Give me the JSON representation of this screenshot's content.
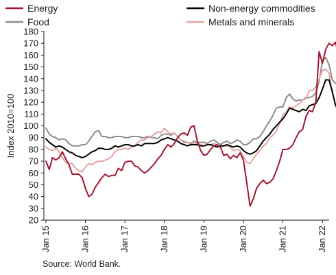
{
  "chart_data": {
    "type": "line",
    "ylabel": "Index 2010=100",
    "ylim": [
      20,
      180
    ],
    "yticks": [
      20,
      30,
      40,
      50,
      60,
      70,
      80,
      90,
      100,
      110,
      120,
      130,
      140,
      150,
      160,
      170,
      180
    ],
    "xticks": [
      "Jan 15",
      "Jan 16",
      "Jan 17",
      "Jan 18",
      "Jan 19",
      "Jan 20",
      "Jan 21",
      "Jan 22"
    ],
    "x_start": "2015-01",
    "legend_position": "top",
    "grid": false,
    "series": [
      {
        "name": "Energy",
        "color": "#a3142f",
        "values": [
          70,
          63,
          73,
          71,
          73,
          78,
          72,
          67,
          59,
          59,
          59,
          56,
          47,
          40,
          42,
          48,
          52,
          56,
          59,
          57,
          58,
          58,
          64,
          62,
          69,
          70,
          70,
          66,
          65,
          62,
          60,
          62,
          65,
          68,
          72,
          75,
          80,
          84,
          82,
          85,
          90,
          93,
          94,
          92,
          99,
          100,
          87,
          79,
          75,
          76,
          80,
          83,
          84,
          82,
          75,
          76,
          72,
          75,
          73,
          77,
          71,
          52,
          32,
          38,
          47,
          51,
          54,
          51,
          52,
          55,
          62,
          70,
          80,
          80,
          81,
          84,
          90,
          95,
          97,
          108,
          113,
          112,
          120,
          163,
          153,
          165,
          170,
          168,
          171,
          157
        ]
      },
      {
        "name": "Non-energy commodities",
        "color": "#000000",
        "values": [
          89,
          86,
          84,
          82,
          83,
          82,
          80,
          78,
          77,
          75,
          74,
          73,
          74,
          76,
          78,
          79,
          81,
          81,
          80,
          80,
          81,
          83,
          82,
          83,
          84,
          84,
          83,
          83,
          84,
          83,
          85,
          85,
          85,
          85,
          86,
          88,
          89,
          90,
          89,
          88,
          87,
          85,
          84,
          83,
          84,
          84,
          84,
          83,
          83,
          84,
          84,
          83,
          82,
          83,
          83,
          84,
          83,
          82,
          83,
          82,
          79,
          77,
          76,
          77,
          79,
          83,
          87,
          90,
          93,
          97,
          100,
          103,
          106,
          110,
          115,
          114,
          113,
          112,
          114,
          113,
          117,
          118,
          119,
          124,
          131,
          139,
          139,
          129,
          117,
          116,
          115,
          114
        ]
      },
      {
        "name": "Food",
        "color": "#8c8c8c",
        "values": [
          98,
          93,
          91,
          90,
          88,
          89,
          88,
          85,
          83,
          83,
          83,
          84,
          84,
          87,
          91,
          95,
          96,
          91,
          91,
          90,
          90,
          91,
          91,
          91,
          90,
          90,
          91,
          91,
          91,
          90,
          90,
          91,
          90,
          90,
          89,
          92,
          93,
          93,
          92,
          94,
          91,
          88,
          86,
          86,
          85,
          87,
          86,
          86,
          86,
          85,
          87,
          88,
          86,
          84,
          86,
          87,
          85,
          86,
          88,
          87,
          84,
          84,
          86,
          89,
          89,
          91,
          95,
          100,
          104,
          109,
          115,
          116,
          116,
          124,
          127,
          123,
          121,
          122,
          122,
          124,
          124,
          125,
          128,
          138,
          155,
          158,
          152,
          139,
          136,
          137
        ]
      },
      {
        "name": "Metals and minerals",
        "color": "#e6a3a3",
        "values": [
          82,
          80,
          79,
          81,
          78,
          73,
          69,
          68,
          68,
          64,
          62,
          61,
          65,
          68,
          67,
          69,
          70,
          70,
          71,
          72,
          74,
          78,
          80,
          80,
          81,
          80,
          82,
          83,
          86,
          88,
          88,
          90,
          91,
          93,
          95,
          94,
          98,
          95,
          93,
          94,
          91,
          88,
          87,
          86,
          84,
          85,
          85,
          84,
          83,
          84,
          84,
          85,
          84,
          82,
          83,
          83,
          82,
          79,
          80,
          79,
          74,
          69,
          68,
          72,
          76,
          79,
          83,
          85,
          90,
          92,
          96,
          102,
          109,
          112,
          116,
          115,
          117,
          119,
          122,
          123,
          130,
          130,
          133,
          140,
          147,
          148,
          145,
          128,
          118,
          107,
          106,
          104
        ]
      }
    ]
  },
  "source": "Source: World Bank."
}
